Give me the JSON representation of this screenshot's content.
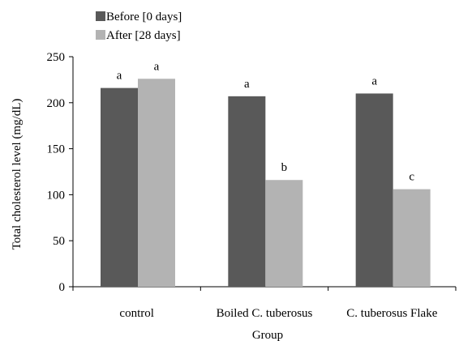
{
  "chart_data": {
    "type": "bar",
    "title": "",
    "xlabel": "Group",
    "ylabel": "Total cholesterol level (mg/dL)",
    "ylim": [
      0,
      250
    ],
    "yticks": [
      0,
      50,
      100,
      150,
      200,
      250
    ],
    "grid": false,
    "legend_position": "top-left",
    "categories": [
      "control",
      "Boiled C. tuberosus",
      "C. tuberosus Flake"
    ],
    "series": [
      {
        "name": "Before [0 days]",
        "color": "#595959",
        "values": [
          216,
          207,
          210
        ],
        "labels": [
          "a",
          "a",
          "a"
        ]
      },
      {
        "name": "After [28 days]",
        "color": "#b3b3b3",
        "values": [
          226,
          116,
          106
        ],
        "labels": [
          "a",
          "b",
          "c"
        ]
      }
    ]
  }
}
